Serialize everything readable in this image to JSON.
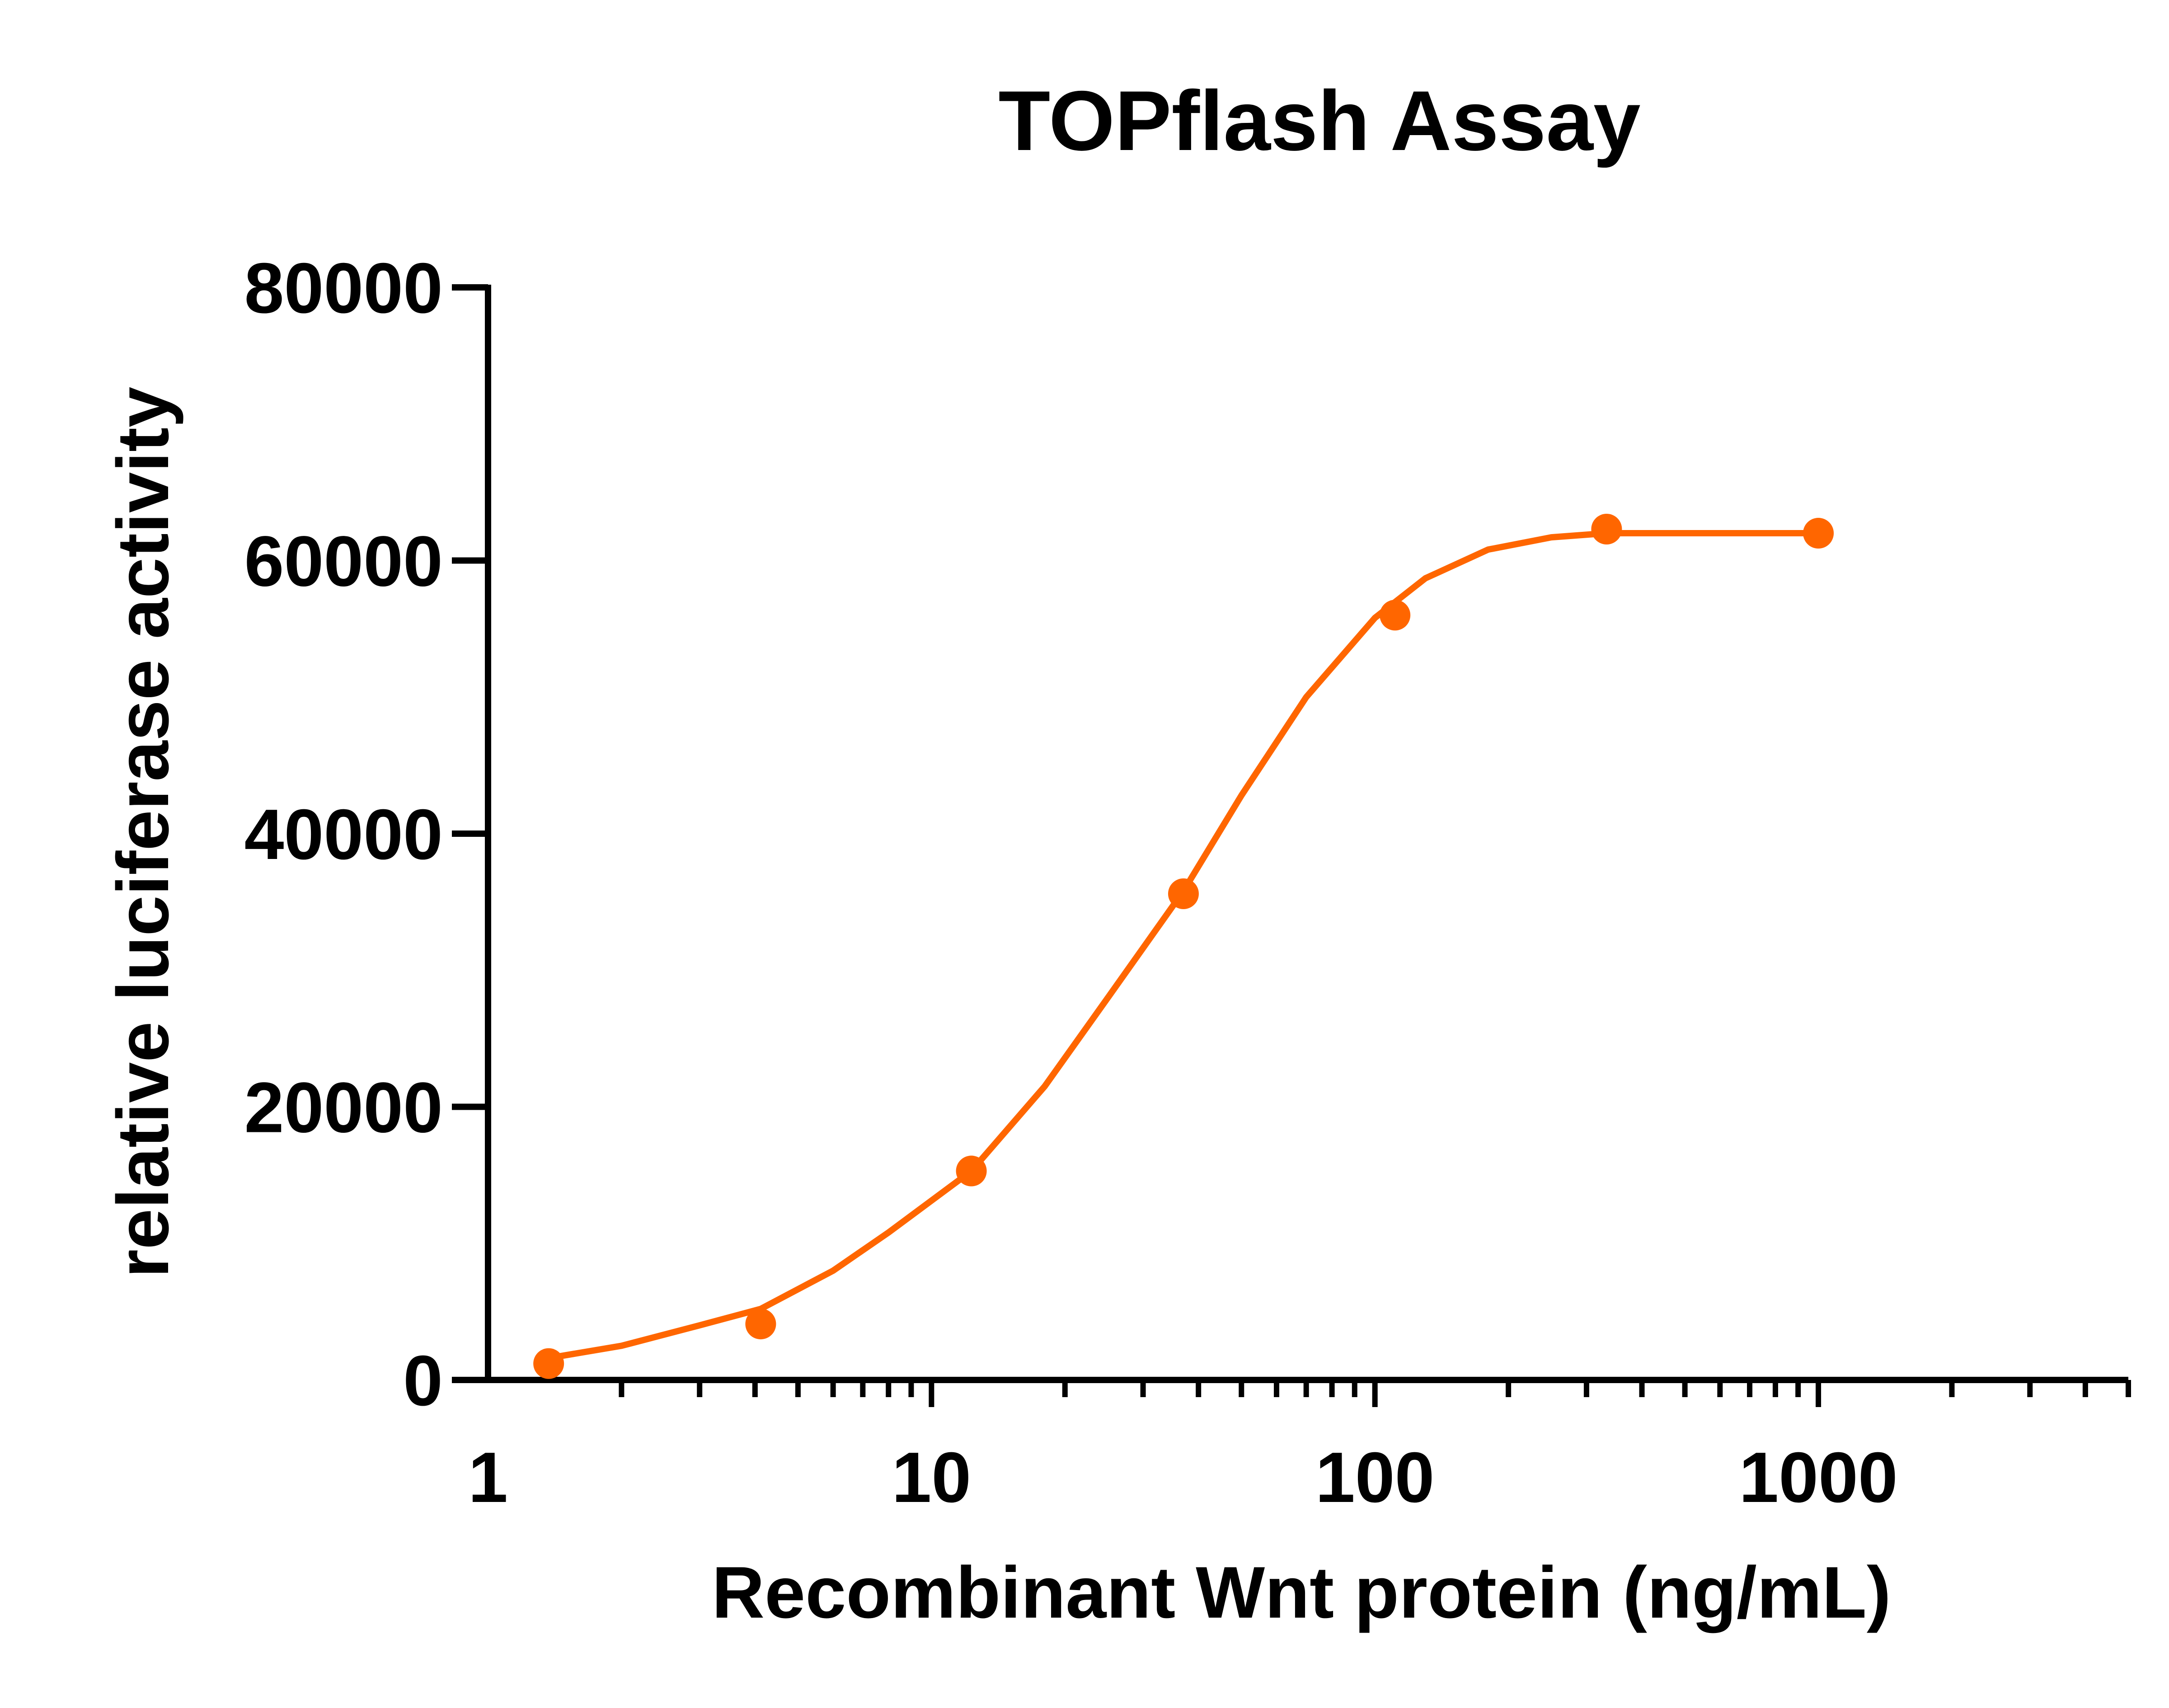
{
  "chart_data": {
    "type": "scatter",
    "title": "TOPflash Assay",
    "xlabel": "Recombinant Wnt protein (ng/mL)",
    "ylabel": "relative luciferase activity",
    "x_scale": "log",
    "xlim": [
      1,
      5000
    ],
    "ylim": [
      0,
      80000
    ],
    "x_ticks": [
      1,
      10,
      100,
      1000
    ],
    "x_tick_labels": [
      "1",
      "10",
      "100",
      "1000"
    ],
    "y_ticks": [
      0,
      20000,
      40000,
      60000,
      80000
    ],
    "y_tick_labels": [
      "0",
      "20000",
      "40000",
      "60000",
      "80000"
    ],
    "grid": false,
    "legend": "none",
    "color": "#ff6600",
    "points": {
      "x": [
        1.37,
        4.12,
        12.3,
        37.0,
        111,
        333,
        1000
      ],
      "y": [
        1200,
        4100,
        15300,
        35600,
        56000,
        62300,
        62000
      ]
    },
    "fit_curve": {
      "x": [
        1.37,
        2.0,
        3.0,
        4.12,
        6.0,
        8.0,
        12.3,
        18.0,
        25.0,
        37.0,
        50.0,
        70.0,
        100,
        130,
        180,
        250,
        333,
        500,
        700,
        1000
      ],
      "y": [
        1600,
        2500,
        4000,
        5200,
        8000,
        10800,
        15300,
        21500,
        28000,
        35800,
        42800,
        50000,
        55800,
        58700,
        60800,
        61700,
        62000,
        62000,
        62000,
        62000
      ]
    }
  }
}
